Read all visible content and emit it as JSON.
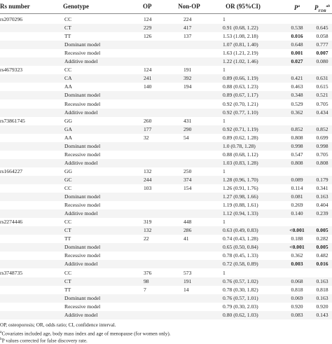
{
  "header": {
    "rs": "Rs number",
    "genotype": "Genotype",
    "op": "OP",
    "non_op": "Non-OP",
    "or": "OR (95%CI)",
    "p": "P",
    "p_sup": "a",
    "fdr": "P",
    "fdr_sub": "FDR",
    "fdr_sup": "ab"
  },
  "groups": [
    {
      "rs": "rs2070296",
      "rows": [
        {
          "genotype": "CC",
          "op": "124",
          "non_op": "224",
          "or": "1"
        },
        {
          "genotype": "CT",
          "op": "229",
          "non_op": "417",
          "or": "0.91 (0.68, 1.22)",
          "p": {
            "text": "0.538"
          },
          "fdr": {
            "text": "0.645"
          }
        },
        {
          "genotype": "TT",
          "op": "126",
          "non_op": "137",
          "or": "1.53 (1.08, 2.18)",
          "p": {
            "text": "0.016",
            "bold": true
          },
          "fdr": {
            "text": "0.058"
          }
        },
        {
          "genotype": "Dominant model",
          "or": "1.07 (0.81, 1.40)",
          "p": {
            "text": "0.648"
          },
          "fdr": {
            "text": "0.777"
          }
        },
        {
          "genotype": "Recessive model",
          "or": "1.63 (1.21, 2.19)",
          "p": {
            "text": "0.001",
            "bold": true
          },
          "fdr": {
            "text": "0.007",
            "bold": true
          }
        },
        {
          "genotype": "Additive model",
          "or": "1.22 (1.02, 1.46)",
          "p": {
            "text": "0.027",
            "bold": true
          },
          "fdr": {
            "text": "0.080"
          }
        }
      ]
    },
    {
      "rs": "rs4679323",
      "rows": [
        {
          "genotype": "CC",
          "op": "124",
          "non_op": "191",
          "or": "1"
        },
        {
          "genotype": "CA",
          "op": "241",
          "non_op": "392",
          "or": "0.89 (0.66, 1.19)",
          "p": {
            "text": "0.421"
          },
          "fdr": {
            "text": "0.631"
          }
        },
        {
          "genotype": "AA",
          "op": "140",
          "non_op": "194",
          "or": "0.88 (0.63, 1.23)",
          "p": {
            "text": "0.463"
          },
          "fdr": {
            "text": "0.615"
          }
        },
        {
          "genotype": "Dominant model",
          "or": "0.89 (0.67, 1.17)",
          "p": {
            "text": "0.348"
          },
          "fdr": {
            "text": "0.521"
          }
        },
        {
          "genotype": "Recessive model",
          "or": "0.92 (0.70, 1.21)",
          "p": {
            "text": "0.529"
          },
          "fdr": {
            "text": "0.705"
          }
        },
        {
          "genotype": "Additive model",
          "or": "0.92 (0.77, 1.10)",
          "p": {
            "text": "0.362"
          },
          "fdr": {
            "text": "0.434"
          }
        }
      ]
    },
    {
      "rs": "rs73861745",
      "rows": [
        {
          "genotype": "GG",
          "op": "260",
          "non_op": "431",
          "or": "1"
        },
        {
          "genotype": "GA",
          "op": "177",
          "non_op": "290",
          "or": "0.92 (0.71, 1.19)",
          "p": {
            "text": "0.852"
          },
          "fdr": {
            "text": "0.852"
          }
        },
        {
          "genotype": "AA",
          "op": "32",
          "non_op": "54",
          "or": "0.89 (0.62, 1.28)",
          "p": {
            "text": "0.808"
          },
          "fdr": {
            "text": "0.699"
          }
        },
        {
          "genotype": "Dominant model",
          "or": "1.0 (0.78, 1.28)",
          "p": {
            "text": "0.998"
          },
          "fdr": {
            "text": "0.998"
          }
        },
        {
          "genotype": "Recessive model",
          "or": "0.88 (0.68, 1.12)",
          "p": {
            "text": "0.547"
          },
          "fdr": {
            "text": "0.705"
          }
        },
        {
          "genotype": "Additive model",
          "or": "1.03 (0.83, 1.28)",
          "p": {
            "text": "0.808"
          },
          "fdr": {
            "text": "0.808"
          }
        }
      ]
    },
    {
      "rs": "rs1664227",
      "rows": [
        {
          "genotype": "GG",
          "op": "132",
          "non_op": "250",
          "or": "1"
        },
        {
          "genotype": "GC",
          "op": "244",
          "non_op": "374",
          "or": "1.28 (0.96, 1.70)",
          "p": {
            "text": "0.089"
          },
          "fdr": {
            "text": "0.179"
          }
        },
        {
          "genotype": "CC",
          "op": "103",
          "non_op": "154",
          "or": "1.26 (0.91, 1.76)",
          "p": {
            "text": "0.114"
          },
          "fdr": {
            "text": "0.341"
          }
        },
        {
          "genotype": "Dominant model",
          "or": "1.27 (0.98, 1.66)",
          "p": {
            "text": "0.081"
          },
          "fdr": {
            "text": "0.163"
          }
        },
        {
          "genotype": "Recessive model",
          "or": "1.19 (0.88, 1.61)",
          "p": {
            "text": "0.269"
          },
          "fdr": {
            "text": "0.404"
          }
        },
        {
          "genotype": "Additive model",
          "or": "1.12 (0.94, 1.33)",
          "p": {
            "text": "0.140"
          },
          "fdr": {
            "text": "0.239"
          }
        }
      ]
    },
    {
      "rs": "rs2274446",
      "rows": [
        {
          "genotype": "CC",
          "op": "319",
          "non_op": "448",
          "or": "1"
        },
        {
          "genotype": "CT",
          "op": "132",
          "non_op": "286",
          "or": "0.63 (0.49, 0.83)",
          "p": {
            "text": "<0.001",
            "bold": true
          },
          "fdr": {
            "text": "0.005",
            "bold": true
          }
        },
        {
          "genotype": "TT",
          "op": "22",
          "non_op": "41",
          "or": "0.74 (0.43, 1.28)",
          "p": {
            "text": "0.188"
          },
          "fdr": {
            "text": "0.282"
          }
        },
        {
          "genotype": "Dominant model",
          "or": "0.65 (0.50, 0.84)",
          "p": {
            "text": "<0.001",
            "bold": true
          },
          "fdr": {
            "text": "0.005",
            "bold": true
          }
        },
        {
          "genotype": "Recessive model",
          "or": "0.78 (0.45, 1.33)",
          "p": {
            "text": "0.362"
          },
          "fdr": {
            "text": "0.482"
          }
        },
        {
          "genotype": "Additive model",
          "or": "0.72 (0.58, 0.89)",
          "p": {
            "text": "0.003",
            "bold": true
          },
          "fdr": {
            "text": "0.016",
            "bold": true
          }
        }
      ]
    },
    {
      "rs": "rs3748735",
      "rows": [
        {
          "genotype": "CC",
          "op": "376",
          "non_op": "573",
          "or": "1"
        },
        {
          "genotype": "CT",
          "op": "98",
          "non_op": "191",
          "or": "0.76 (0.57, 1.02)",
          "p": {
            "text": "0.068"
          },
          "fdr": {
            "text": "0.163"
          }
        },
        {
          "genotype": "TT",
          "op": "7",
          "non_op": "14",
          "or": "0.78 (0.30, 1.82)",
          "p": {
            "text": "0.818"
          },
          "fdr": {
            "text": "0.818"
          }
        },
        {
          "genotype": "Dominant model",
          "or": "0.76 (0.57, 1.01)",
          "p": {
            "text": "0.069"
          },
          "fdr": {
            "text": "0.163"
          }
        },
        {
          "genotype": "Recessive model",
          "or": "0.79 (0.30, 2.03)",
          "p": {
            "text": "0.920"
          },
          "fdr": {
            "text": "0.920"
          }
        },
        {
          "genotype": "Additive model",
          "or": "0.80 (0.62, 1.03)",
          "p": {
            "text": "0.083"
          },
          "fdr": {
            "text": "0.143"
          }
        }
      ]
    }
  ],
  "footnotes": [
    {
      "text": "OP, osteoporosis; OR, odds ratio; CI, confidence interval."
    },
    {
      "mark": "a",
      "text": "Covariates included age, body mass index and age of menopause (for women only)."
    },
    {
      "mark": "b",
      "text": "P values corrected for false discovery rate."
    }
  ]
}
